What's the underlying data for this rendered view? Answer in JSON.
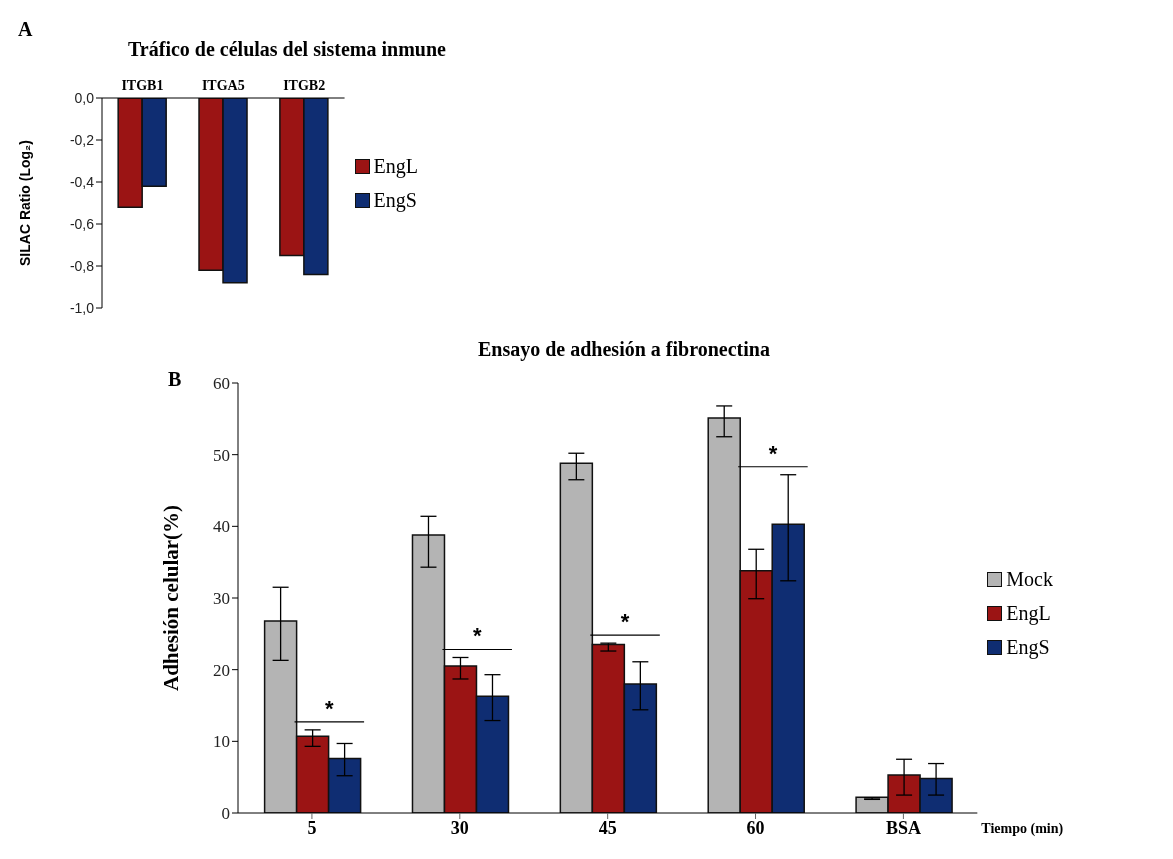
{
  "chart_data": [
    {
      "type": "bar",
      "title": "Tráfico de células del sistema inmune",
      "ylabel": "SILAC Ratio (Log₂)",
      "categories": [
        "ITGB1",
        "ITGA5",
        "ITGB2"
      ],
      "series": [
        {
          "name": "EngL",
          "color": "#9b1414",
          "values": [
            -0.52,
            -0.82,
            -0.75
          ]
        },
        {
          "name": "EngS",
          "color": "#0f2d72",
          "values": [
            -0.42,
            -0.88,
            -0.84
          ]
        }
      ],
      "ylim": [
        -1,
        0
      ],
      "yticks": [
        {
          "value": -1,
          "label": "-1,0"
        },
        {
          "value": -0.8,
          "label": "-0,8"
        },
        {
          "value": -0.6,
          "label": "-0,6"
        },
        {
          "value": -0.4,
          "label": "-0,4"
        },
        {
          "value": -0.2,
          "label": "-0,2"
        },
        {
          "value": 0,
          "label": "0,0"
        }
      ],
      "legend": "right",
      "annotations": [
        "A"
      ]
    },
    {
      "type": "bar",
      "title": "Ensayo de adhesión a fibronectina",
      "xlabel": "Tiempo (min)",
      "ylabel": "Adhesión celular(%)",
      "categories": [
        "5",
        "30",
        "45",
        "60",
        "BSA"
      ],
      "series": [
        {
          "name": "Mock",
          "color": "#b4b4b4",
          "values": [
            26.8,
            38.8,
            48.8,
            55.1,
            2.2
          ],
          "errors": [
            [
              21.3,
              31.5
            ],
            [
              34.3,
              41.4
            ],
            [
              46.5,
              50.2
            ],
            [
              52.5,
              56.8
            ],
            [
              1.9,
              2.1
            ]
          ]
        },
        {
          "name": "EngL",
          "color": "#9b1414",
          "values": [
            10.7,
            20.5,
            23.5,
            33.8,
            5.3
          ],
          "errors": [
            [
              9.3,
              11.6
            ],
            [
              18.7,
              21.7
            ],
            [
              22.6,
              23.7
            ],
            [
              29.9,
              36.8
            ],
            [
              2.5,
              7.5
            ]
          ]
        },
        {
          "name": "EngS",
          "color": "#0f2d72",
          "values": [
            7.6,
            16.3,
            18.0,
            40.3,
            4.8
          ],
          "errors": [
            [
              5.2,
              9.7
            ],
            [
              12.9,
              19.3
            ],
            [
              14.4,
              21.1
            ],
            [
              32.4,
              47.2
            ],
            [
              2.5,
              6.9
            ]
          ]
        }
      ],
      "ylim": [
        0,
        60
      ],
      "yticks": [
        0,
        10,
        20,
        30,
        40,
        50,
        60
      ],
      "legend": "right",
      "annotations": [
        "B",
        "*",
        "*",
        "*",
        "*"
      ]
    }
  ]
}
